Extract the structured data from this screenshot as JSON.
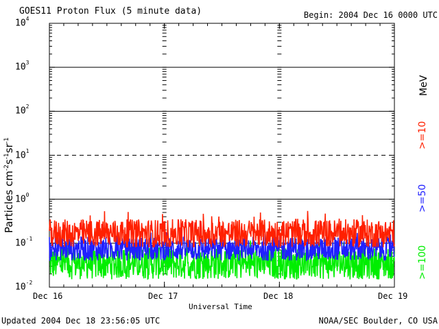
{
  "header": {
    "title": "GOES11 Proton Flux (5 minute data)",
    "begin": "Begin: 2004 Dec 16 0000 UTC"
  },
  "footer": {
    "updated": "Updated 2004 Dec 18 23:56:05 UTC",
    "source": "NOAA/SEC Boulder, CO USA"
  },
  "chart_data": {
    "type": "line",
    "title": "GOES11 Proton Flux (5 minute data)",
    "xlabel": "Universal Time",
    "ylabel": "Particles cm-2 s-1 sr-1",
    "yscale": "log",
    "ylim": [
      0.01,
      10000
    ],
    "xlim_days": [
      0,
      3
    ],
    "x_ticks": [
      "Dec 16",
      "Dec 17",
      "Dec 18",
      "Dec 19"
    ],
    "y_ticks": [
      {
        "base": "10",
        "exp": "-2",
        "value": 0.01
      },
      {
        "base": "10",
        "exp": "-1",
        "value": 0.1
      },
      {
        "base": "10",
        "exp": "0",
        "value": 1
      },
      {
        "base": "10",
        "exp": "1",
        "value": 10
      },
      {
        "base": "10",
        "exp": "2",
        "value": 100
      },
      {
        "base": "10",
        "exp": "3",
        "value": 1000
      },
      {
        "base": "10",
        "exp": "4",
        "value": 10000
      }
    ],
    "reference_lines": [
      {
        "value": 1,
        "style": "solid"
      },
      {
        "value": 10,
        "style": "dashed"
      },
      {
        "value": 100,
        "style": "solid"
      },
      {
        "value": 1000,
        "style": "solid"
      },
      {
        "value": 0.1,
        "style": "solid"
      }
    ],
    "series": [
      {
        "name": ">=10",
        "color": "#ff2000",
        "typical_min": 0.08,
        "typical_max": 0.35,
        "peak": 0.55
      },
      {
        "name": ">=50",
        "color": "#2020ff",
        "typical_min": 0.04,
        "typical_max": 0.14,
        "peak": 0.2
      },
      {
        "name": ">=100",
        "color": "#00ee00",
        "typical_min": 0.015,
        "typical_max": 0.08,
        "peak": 0.12
      }
    ],
    "legend_unit": "MeV",
    "grid": false,
    "legend_position": "right"
  }
}
